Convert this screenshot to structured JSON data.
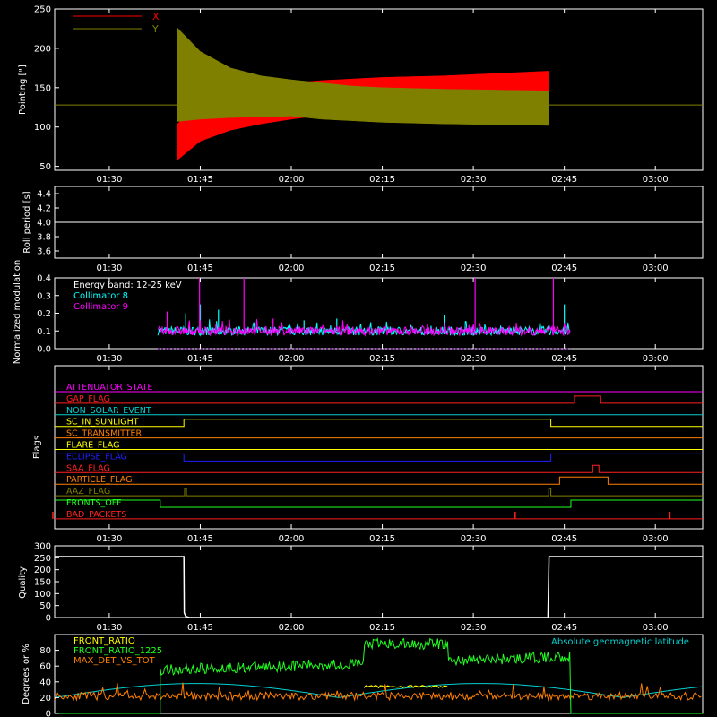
{
  "chart_data": [
    {
      "type": "area",
      "ylabel": "Pointing [\"]",
      "ylim": [
        45,
        250
      ],
      "yticks": [
        "50",
        "100",
        "150",
        "200",
        "250"
      ],
      "xticks": [
        "01:30",
        "01:45",
        "02:00",
        "02:15",
        "02:30",
        "02:45",
        "03:00"
      ],
      "xlim": [
        "01:21",
        "03:08"
      ],
      "series": [
        {
          "name": "X",
          "color": "#ff0000",
          "band_lo": [
            [
              1.687,
              58
            ],
            [
              1.75,
              82
            ],
            [
              1.833,
              96
            ],
            [
              1.917,
              104
            ],
            [
              2.0,
              110
            ],
            [
              2.083,
              115
            ],
            [
              2.167,
              117
            ],
            [
              2.25,
              119
            ],
            [
              2.333,
              120
            ],
            [
              2.42,
              121
            ],
            [
              2.708,
              122
            ]
          ],
          "band_hi": [
            [
              1.687,
              104
            ],
            [
              1.75,
              130
            ],
            [
              1.833,
              142
            ],
            [
              1.917,
              150
            ],
            [
              2.0,
              156
            ],
            [
              2.083,
              159
            ],
            [
              2.167,
              161
            ],
            [
              2.25,
              163
            ],
            [
              2.333,
              164
            ],
            [
              2.42,
              165
            ],
            [
              2.708,
              171
            ]
          ]
        },
        {
          "name": "Y",
          "color": "#808000",
          "band_lo": [
            [
              1.687,
              107
            ],
            [
              1.75,
              110
            ],
            [
              1.833,
              112
            ],
            [
              1.917,
              113
            ],
            [
              2.0,
              114
            ],
            [
              2.083,
              110
            ],
            [
              2.167,
              108
            ],
            [
              2.25,
              106
            ],
            [
              2.333,
              105
            ],
            [
              2.42,
              104
            ],
            [
              2.708,
              102
            ]
          ],
          "band_hi": [
            [
              1.687,
              226
            ],
            [
              1.75,
              196
            ],
            [
              1.833,
              175
            ],
            [
              1.917,
              165
            ],
            [
              2.0,
              160
            ],
            [
              2.083,
              156
            ],
            [
              2.167,
              152
            ],
            [
              2.25,
              150
            ],
            [
              2.333,
              149
            ],
            [
              2.42,
              148
            ],
            [
              2.708,
              146
            ]
          ]
        }
      ],
      "reference_line": 128
    },
    {
      "type": "line",
      "ylabel": "Roll period [s]",
      "ylim": [
        3.5,
        4.5
      ],
      "yticks": [
        "3.6",
        "3.8",
        "4.0",
        "4.2",
        "4.4"
      ],
      "xticks": [
        "01:30",
        "01:45",
        "02:00",
        "02:15",
        "02:30",
        "02:45",
        "03:00"
      ],
      "series": [
        {
          "x": [
            "01:21",
            "03:08"
          ],
          "y": [
            4.0,
            4.0
          ],
          "color": "#ffffff"
        }
      ]
    },
    {
      "type": "line",
      "ylabel": "Normalized modulation",
      "ylim": [
        0.0,
        0.4
      ],
      "yticks": [
        "0.0",
        "0.1",
        "0.2",
        "0.3",
        "0.4"
      ],
      "xticks": [
        "01:30",
        "01:45",
        "02:00",
        "02:15",
        "02:30",
        "02:45",
        "03:00"
      ],
      "annotation": "Energy band: 12-25 keV",
      "series": [
        {
          "name": "Collimator 8",
          "color": "#00ffff",
          "baseline": 0.1,
          "range": [
            "01:38",
            "02:46"
          ]
        },
        {
          "name": "Collimator 9",
          "color": "#ff00ff",
          "baseline": 0.1,
          "range": [
            "01:38",
            "02:46"
          ]
        }
      ],
      "spikes_c8": [
        [
          1.71,
          0.2
        ],
        [
          1.75,
          0.25
        ],
        [
          1.8,
          0.22
        ],
        [
          2.035,
          0.16
        ],
        [
          2.125,
          0.17
        ],
        [
          2.42,
          0.19
        ],
        [
          2.75,
          0.25
        ],
        [
          2.812,
          0.1
        ]
      ],
      "spikes_c9": [
        [
          1.748,
          0.4
        ],
        [
          1.87,
          0.4
        ],
        [
          2.505,
          0.4
        ],
        [
          2.72,
          0.4
        ],
        [
          1.659,
          0.21
        ],
        [
          1.95,
          0.17
        ]
      ]
    },
    {
      "type": "table",
      "ylabel": "Flags",
      "xticks": [
        "01:30",
        "01:45",
        "02:00",
        "02:15",
        "02:30",
        "02:45",
        "03:00"
      ],
      "flags": [
        {
          "name": "ATTENUATOR_STATE",
          "color": "#ff00ff",
          "steps": [
            [
              1.35,
              0
            ],
            [
              3.13,
              0
            ]
          ]
        },
        {
          "name": "GAP_FLAG",
          "color": "#ff2020",
          "steps": [
            [
              1.35,
              0
            ],
            [
              2.778,
              1
            ],
            [
              2.85,
              0
            ]
          ]
        },
        {
          "name": "NON_SOLAR_EVENT",
          "color": "#00d0d0",
          "steps": [
            [
              1.35,
              0
            ],
            [
              3.13,
              0
            ]
          ]
        },
        {
          "name": "SC_IN_SUNLIGHT",
          "color": "#ffff00",
          "steps": [
            [
              1.35,
              0
            ],
            [
              1.705,
              1
            ],
            [
              2.713,
              0
            ]
          ]
        },
        {
          "name": "SC_TRANSMITTER",
          "color": "#ff8000",
          "steps": [
            [
              1.35,
              0
            ],
            [
              3.13,
              0
            ]
          ]
        },
        {
          "name": "FLARE_FLAG",
          "color": "#ffff00",
          "steps": [
            [
              1.35,
              0
            ],
            [
              3.13,
              0
            ]
          ]
        },
        {
          "name": "ECLIPSE_FLAG",
          "color": "#2020ff",
          "steps": [
            [
              1.35,
              1
            ],
            [
              1.705,
              0
            ],
            [
              2.713,
              1
            ]
          ]
        },
        {
          "name": "SAA_FLAG",
          "color": "#ff2020",
          "steps": [
            [
              1.35,
              0
            ],
            [
              2.828,
              1
            ],
            [
              2.845,
              0
            ]
          ]
        },
        {
          "name": "PARTICLE_FLAG",
          "color": "#ff8000",
          "steps": [
            [
              1.35,
              0
            ],
            [
              2.737,
              1
            ],
            [
              2.87,
              0
            ]
          ]
        },
        {
          "name": "AAZ_FLAG",
          "color": "#808000",
          "steps": [
            [
              1.35,
              0
            ],
            [
              1.707,
              1
            ],
            [
              1.712,
              0
            ],
            [
              2.707,
              1
            ],
            [
              2.713,
              0
            ]
          ]
        },
        {
          "name": "FRONTS_OFF",
          "color": "#20ff20",
          "steps": [
            [
              1.35,
              1
            ],
            [
              1.64,
              0
            ],
            [
              2.768,
              1
            ]
          ]
        },
        {
          "name": "BAD_PACKETS",
          "color": "#ff2020",
          "steps": [
            [
              1.35,
              0
            ],
            [
              3.13,
              0
            ]
          ],
          "spikes": [
            1.345,
            2.615,
            3.04
          ]
        }
      ]
    },
    {
      "type": "line",
      "ylabel": "Quality",
      "ylim": [
        0,
        300
      ],
      "yticks": [
        "0",
        "50",
        "100",
        "150",
        "200",
        "250",
        "300"
      ],
      "xticks": [
        "01:30",
        "01:45",
        "02:00",
        "02:15",
        "02:30",
        "02:45",
        "03:00"
      ],
      "series": [
        {
          "color": "#ffffff",
          "x": [
            1.35,
            1.705,
            1.706,
            1.71,
            1.72,
            2.705,
            2.708,
            3.13
          ],
          "y": [
            255,
            255,
            20,
            5,
            0,
            0,
            255,
            255
          ]
        }
      ]
    },
    {
      "type": "line",
      "ylabel": "Degrees or %",
      "ylim": [
        0,
        100
      ],
      "yticks": [
        "0",
        "20",
        "40",
        "60",
        "80"
      ],
      "xticks": [
        "01:30",
        "01:45",
        "02:00",
        "02:15",
        "02:30",
        "02:45",
        "03:00"
      ],
      "annotation": "Absolute geomagnetic latitude",
      "series": [
        {
          "name": "FRONT_RATIO",
          "color": "#ffff00"
        },
        {
          "name": "FRONT_RATIO_1225",
          "color": "#20ff20"
        },
        {
          "name": "MAX_DET_VS_TOT",
          "color": "#ff8000"
        }
      ],
      "latitude_color": "#00d0d0"
    }
  ]
}
